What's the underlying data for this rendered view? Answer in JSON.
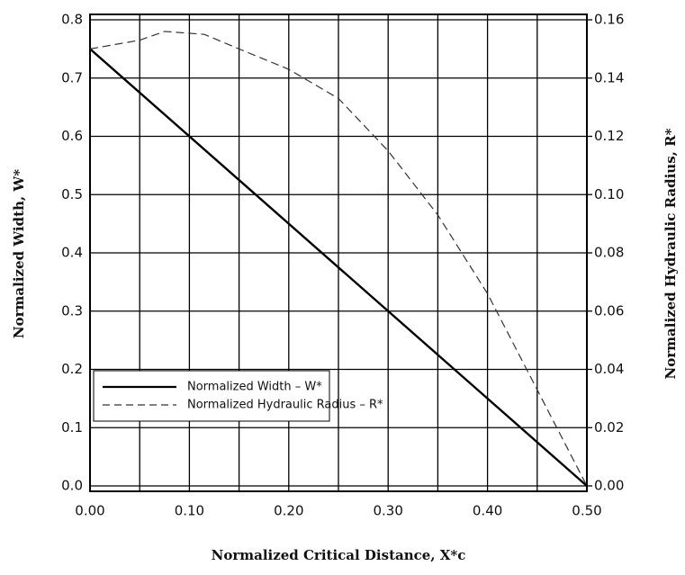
{
  "chart_data": {
    "type": "line",
    "xlabel": "Normalized Critical Distance, X*c",
    "ylabel": "Normalized Width, W*",
    "y2label": "Normalized Hydraulic Radius, R*",
    "xlim": [
      0,
      0.5
    ],
    "xticks": [
      {
        "value": 0,
        "label": "0.00"
      },
      {
        "value": 0.1,
        "label": "0.10"
      },
      {
        "value": 0.2,
        "label": "0.20"
      },
      {
        "value": 0.3,
        "label": "0.30"
      },
      {
        "value": 0.4,
        "label": "0.40"
      },
      {
        "value": 0.5,
        "label": "0.50"
      }
    ],
    "xgrid": [
      0.05,
      0.15,
      0.25,
      0.35,
      0.45
    ],
    "ylim": [
      0,
      0.8
    ],
    "yticks": [
      {
        "value": 0,
        "label": "0.0"
      },
      0.1,
      0.2,
      0.3,
      0.4,
      0.5,
      0.6,
      0.7,
      0.8
    ],
    "y2lim": [
      0,
      0.16
    ],
    "y2ticks": [
      {
        "value": 0,
        "label": "0.00"
      },
      {
        "value": 0.02,
        "label": "0.02"
      },
      {
        "value": 0.04,
        "label": "0.04"
      },
      {
        "value": 0.06,
        "label": "0.06"
      },
      {
        "value": 0.08,
        "label": "0.08"
      },
      {
        "value": 0.1,
        "label": "0.10"
      },
      {
        "value": 0.12,
        "label": "0.12"
      },
      {
        "value": 0.14,
        "label": "0.14"
      },
      {
        "value": 0.16,
        "label": "0.16"
      }
    ],
    "grid": true,
    "legend": "lower-left",
    "series": [
      {
        "name": "Normalized Width – W*",
        "color": "#000000",
        "dash": "solid",
        "x": [
          0,
          0.5
        ],
        "values": [
          0.75,
          0
        ]
      },
      {
        "name": "Normalized Hydraulic Radius – R*",
        "color": "#333333",
        "dash": "dashed",
        "axis": "y2",
        "x": [
          0,
          0.05,
          0.075,
          0.115,
          0.15,
          0.2,
          0.25,
          0.3,
          0.35,
          0.4,
          0.45,
          0.5
        ],
        "values": [
          0.15,
          0.153,
          0.156,
          0.155,
          0.15,
          0.143,
          0.133,
          0.115,
          0.093,
          0.066,
          0.033,
          0
        ]
      }
    ]
  }
}
